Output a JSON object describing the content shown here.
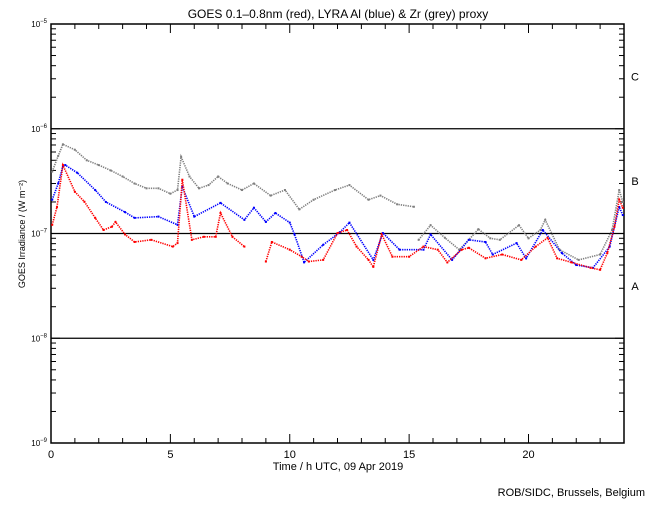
{
  "chart_data": {
    "type": "scatter",
    "title": "GOES 0.1–0.8nm (red), LYRA Al (blue) & Zr (grey) proxy",
    "xlabel": "Time / h UTC, 09 Apr 2019",
    "ylabel": "GOES Irradiance / (W m⁻²)",
    "xlim": [
      0,
      24
    ],
    "ylim": [
      1e-09,
      1e-05
    ],
    "yscale": "log",
    "x_ticks": [
      0,
      5,
      10,
      15,
      20
    ],
    "y_ticks": [
      {
        "value": 1e-05,
        "base": "10",
        "exp": "−5"
      },
      {
        "value": 1e-06,
        "base": "10",
        "exp": "−6"
      },
      {
        "value": 1e-07,
        "base": "10",
        "exp": "−7"
      },
      {
        "value": 1e-08,
        "base": "10",
        "exp": "−8"
      },
      {
        "value": 1e-09,
        "base": "10",
        "exp": "−9"
      }
    ],
    "reference_lines": [
      1e-06,
      1e-07,
      1e-08
    ],
    "flare_classes": [
      {
        "label": "C",
        "value": 3.16e-06
      },
      {
        "label": "B",
        "value": 3.16e-07
      },
      {
        "label": "A",
        "value": 3.16e-08
      }
    ],
    "series": [
      {
        "name": "Zr (grey)",
        "color": "#808080",
        "points": [
          [
            0.05,
            3.9e-07
          ],
          [
            0.3,
            5.5e-07
          ],
          [
            0.5,
            7.1e-07
          ],
          [
            1.0,
            6.3e-07
          ],
          [
            1.5,
            5e-07
          ],
          [
            2.0,
            4.5e-07
          ],
          [
            2.5,
            4e-07
          ],
          [
            3.0,
            3.5e-07
          ],
          [
            3.5,
            3e-07
          ],
          [
            4.0,
            2.7e-07
          ],
          [
            4.5,
            2.7e-07
          ],
          [
            5.0,
            2.4e-07
          ],
          [
            5.3,
            2.6e-07
          ],
          [
            5.45,
            5.4e-07
          ],
          [
            5.8,
            3.5e-07
          ],
          [
            6.2,
            2.7e-07
          ],
          [
            6.6,
            2.9e-07
          ],
          [
            7.0,
            3.5e-07
          ],
          [
            7.4,
            3e-07
          ],
          [
            8.0,
            2.6e-07
          ],
          [
            8.5,
            3e-07
          ],
          [
            9.2,
            2.3e-07
          ],
          [
            9.8,
            2.6e-07
          ],
          [
            10.4,
            1.7e-07
          ],
          [
            11.0,
            2.1e-07
          ],
          [
            11.9,
            2.6e-07
          ],
          [
            12.5,
            2.9e-07
          ],
          [
            13.3,
            2.1e-07
          ],
          [
            13.8,
            2.3e-07
          ],
          [
            14.5,
            1.9e-07
          ],
          [
            15.2,
            1.8e-07
          ],
          null,
          [
            15.4,
            8.7e-08
          ],
          [
            15.9,
            1.2e-07
          ],
          [
            16.5,
            9.1e-08
          ],
          [
            17.1,
            7e-08
          ],
          [
            17.5,
            8.7e-08
          ],
          [
            17.9,
            1.1e-07
          ],
          [
            18.4,
            9e-08
          ],
          [
            18.8,
            8.7e-08
          ],
          [
            19.6,
            1.2e-07
          ],
          [
            20.0,
            9e-08
          ],
          [
            20.5,
            1.08e-07
          ],
          [
            20.7,
            1.35e-07
          ],
          [
            21.3,
            7e-08
          ],
          [
            22.1,
            5.6e-08
          ],
          [
            23.0,
            6.3e-08
          ],
          [
            23.5,
            1.08e-07
          ],
          [
            23.8,
            2.6e-07
          ],
          [
            23.95,
            2e-07
          ]
        ]
      },
      {
        "name": "LYRA Al (blue)",
        "color": "#0000ff",
        "points": [
          [
            0.05,
            2.1e-07
          ],
          [
            0.3,
            3e-07
          ],
          [
            0.5,
            4.4e-07
          ],
          [
            0.6,
            4.5e-07
          ],
          [
            1.1,
            3.8e-07
          ],
          [
            1.85,
            2.6e-07
          ],
          [
            2.3,
            2e-07
          ],
          [
            3.1,
            1.6e-07
          ],
          [
            3.5,
            1.41e-07
          ],
          [
            4.5,
            1.45e-07
          ],
          [
            5.3,
            1.21e-07
          ],
          [
            5.5,
            2.8e-07
          ],
          [
            6.0,
            1.45e-07
          ],
          [
            7.1,
            1.96e-07
          ],
          [
            8.1,
            1.35e-07
          ],
          [
            8.5,
            1.76e-07
          ],
          [
            9.0,
            1.29e-07
          ],
          [
            9.4,
            1.57e-07
          ],
          [
            10.0,
            1.27e-07
          ],
          [
            10.2,
            9.8e-08
          ],
          [
            10.6,
            5.3e-08
          ],
          [
            11.4,
            7.8e-08
          ],
          [
            12.1,
            1.03e-07
          ],
          [
            12.5,
            1.27e-07
          ],
          [
            13.5,
            5.6e-08
          ],
          [
            13.9,
            1.01e-07
          ],
          [
            14.6,
            7e-08
          ],
          [
            15.6,
            7e-08
          ],
          [
            15.9,
            9.8e-08
          ],
          [
            16.8,
            5.6e-08
          ],
          [
            17.5,
            8.7e-08
          ],
          [
            18.2,
            8.3e-08
          ],
          [
            18.5,
            6.3e-08
          ],
          [
            19.5,
            8.1e-08
          ],
          [
            19.9,
            5.8e-08
          ],
          [
            20.6,
            1.08e-07
          ],
          [
            21.4,
            6.5e-08
          ],
          [
            22.0,
            5e-08
          ],
          [
            22.7,
            4.7e-08
          ],
          [
            23.4,
            7.5e-08
          ],
          [
            23.8,
            1.79e-07
          ],
          [
            23.95,
            1.5e-07
          ]
        ]
      },
      {
        "name": "GOES 0.1–0.8nm (red)",
        "color": "#ff0000",
        "points": [
          [
            0.05,
            1.21e-07
          ],
          [
            0.25,
            1.79e-07
          ],
          [
            0.5,
            4.5e-07
          ],
          [
            1.0,
            2.5e-07
          ],
          [
            1.4,
            2.01e-07
          ],
          [
            1.85,
            1.41e-07
          ],
          [
            2.2,
            1.08e-07
          ],
          [
            2.55,
            1.16e-07
          ],
          [
            2.7,
            1.29e-07
          ],
          [
            3.1,
            9.8e-08
          ],
          [
            3.5,
            8.3e-08
          ],
          [
            4.2,
            8.7e-08
          ],
          [
            5.1,
            7.5e-08
          ],
          [
            5.3,
            8.1e-08
          ],
          [
            5.5,
            3.26e-07
          ],
          [
            5.9,
            8.7e-08
          ],
          [
            6.4,
            9.3e-08
          ],
          [
            6.9,
            9.3e-08
          ],
          [
            7.1,
            1.57e-07
          ],
          [
            7.6,
            9.3e-08
          ],
          [
            8.1,
            7.5e-08
          ],
          null,
          [
            9.0,
            5.4e-08
          ],
          [
            9.25,
            8.3e-08
          ],
          [
            10.0,
            7e-08
          ],
          [
            10.5,
            6e-08
          ],
          [
            10.8,
            5.4e-08
          ],
          [
            11.4,
            5.6e-08
          ],
          [
            12.0,
            1.01e-07
          ],
          [
            12.4,
            1.08e-07
          ],
          [
            12.8,
            7.5e-08
          ],
          [
            13.3,
            5.6e-08
          ],
          [
            13.5,
            4.8e-08
          ],
          [
            13.85,
            9.8e-08
          ],
          [
            14.3,
            6e-08
          ],
          [
            15.0,
            6e-08
          ],
          [
            15.6,
            7.5e-08
          ],
          [
            16.2,
            7e-08
          ],
          [
            16.6,
            5.3e-08
          ],
          [
            17.2,
            7e-08
          ],
          [
            17.5,
            7.3e-08
          ],
          [
            18.2,
            5.8e-08
          ],
          [
            18.9,
            6.3e-08
          ],
          [
            19.7,
            5.6e-08
          ],
          [
            20.3,
            7.5e-08
          ],
          [
            20.8,
            9.1e-08
          ],
          [
            21.2,
            5.8e-08
          ],
          [
            21.8,
            5.3e-08
          ],
          [
            22.6,
            4.7e-08
          ],
          [
            23.0,
            4.5e-08
          ],
          [
            23.3,
            6.5e-08
          ],
          [
            23.6,
            1.16e-07
          ],
          [
            23.8,
            2.1e-07
          ],
          [
            23.95,
            1.76e-07
          ]
        ]
      }
    ],
    "grid": false,
    "legend": "in title"
  },
  "footer": {
    "credit": "ROB/SIDC, Brussels, Belgium"
  }
}
